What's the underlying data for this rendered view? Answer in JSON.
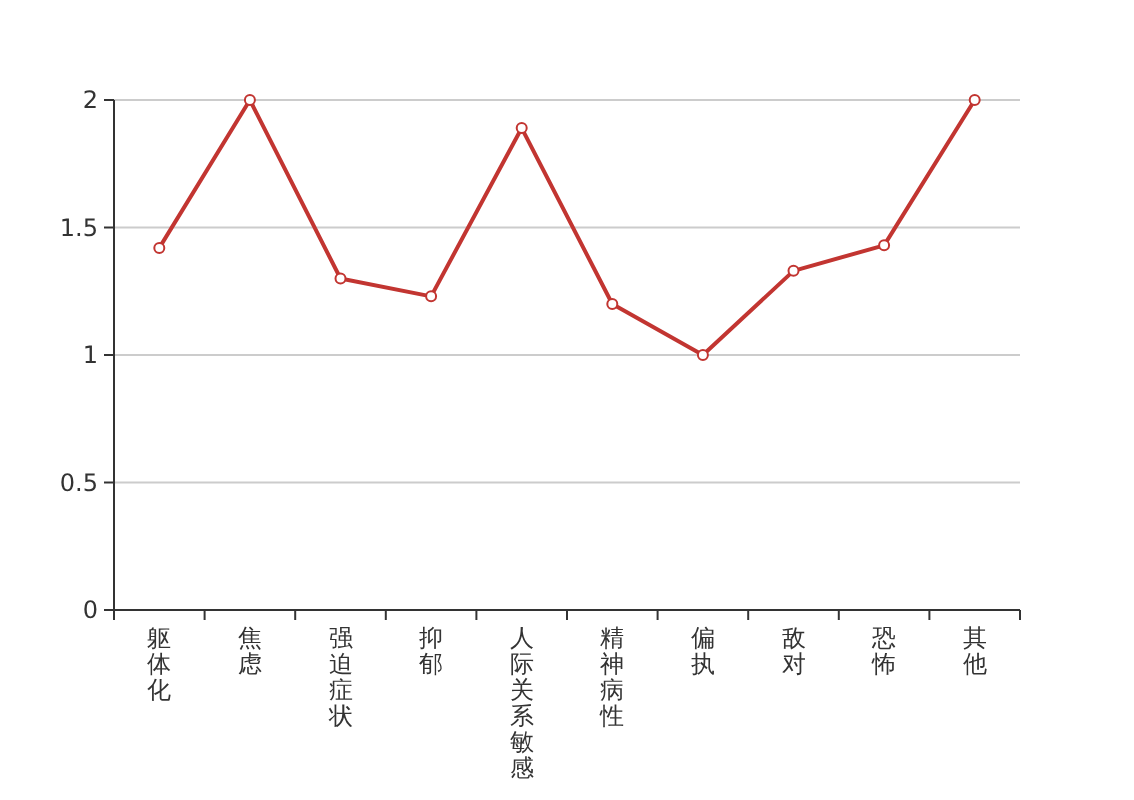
{
  "chart_data": {
    "type": "line",
    "categories": [
      "躯体化",
      "焦虑",
      "强迫症状",
      "抑郁",
      "人际关系敏感",
      "精神病性",
      "偏执",
      "敌对",
      "恐怖",
      "其他"
    ],
    "series": [
      {
        "color": "#c23531",
        "values": [
          1.42,
          2.0,
          1.3,
          1.23,
          1.89,
          1.2,
          1.0,
          1.33,
          1.43,
          2.0
        ]
      }
    ],
    "ylim": [
      0,
      2
    ],
    "yticks": [
      0,
      {
        "value": 0.5,
        "label": "0.5"
      },
      1,
      {
        "value": 1.5,
        "label": "1.5"
      },
      2
    ],
    "grid": "y",
    "marker": "circle",
    "line_style": "solid"
  }
}
